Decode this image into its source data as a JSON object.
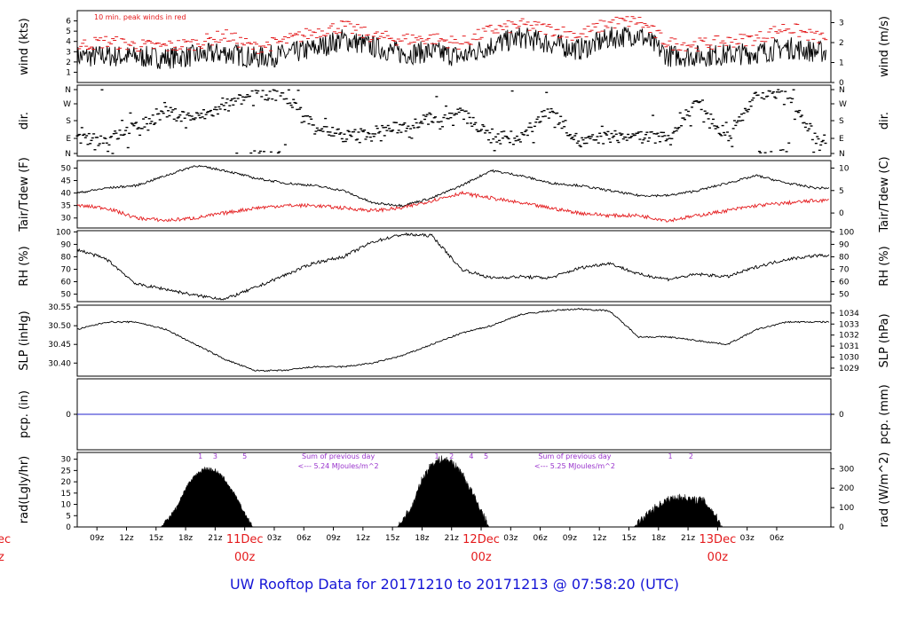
{
  "page": {
    "title": "UW Rooftop Data for 20171210  to  20171213 @ 07:58:20  (UTC)"
  },
  "colors": {
    "title": "#1515d6",
    "peak": "#e41a1c",
    "dew": "#e41a1c",
    "precip": "#2222cc",
    "solar_ann": "#9933cc",
    "day_label": "#e41a1c",
    "line": "#000000"
  },
  "time_axis": {
    "tick_labels": [
      "09z",
      "12z",
      "15z",
      "18z",
      "21z",
      "03z",
      "06z",
      "09z",
      "12z",
      "15z",
      "18z",
      "21z",
      "03z",
      "06z",
      "09z",
      "12z",
      "15z",
      "18z",
      "21z",
      "03z",
      "06z"
    ],
    "day_labels": [
      {
        "date": "11Dec",
        "hour": "00z"
      },
      {
        "date": "12Dec",
        "hour": "00z"
      },
      {
        "date": "13Dec",
        "hour": "00z"
      }
    ],
    "edge_left_date": "ec",
    "edge_left_hour": "z"
  },
  "chart_data": [
    {
      "type": "line",
      "panel": "wind",
      "ylabel_left": "wind (kts)",
      "ylabel_right": "wind (m/s)",
      "yticks_left": [
        "1",
        "2",
        "3",
        "4",
        "5",
        "6"
      ],
      "yticks_right": [
        "0",
        "1",
        "2",
        "3"
      ],
      "ylim_left": [
        0,
        7
      ],
      "annotation": "10 min. peak winds in red",
      "series": [
        {
          "name": "wind",
          "x": [
            7,
            10,
            13,
            16,
            19,
            22,
            25,
            28,
            31,
            34,
            37,
            40,
            43,
            46,
            49,
            52,
            55,
            58,
            61,
            64,
            67,
            70,
            73,
            76,
            79,
            82
          ],
          "y": [
            2.5,
            2.6,
            2.5,
            2.4,
            2.6,
            2.9,
            2.4,
            2.7,
            3.3,
            4.2,
            3.5,
            2.8,
            3.0,
            2.5,
            3.6,
            4.4,
            3.8,
            3.2,
            4.3,
            4.7,
            2.6,
            2.6,
            2.7,
            2.9,
            3.4,
            3.0
          ]
        },
        {
          "name": "peak",
          "x": [
            7,
            10,
            13,
            16,
            19,
            22,
            25,
            28,
            31,
            34,
            37,
            40,
            43,
            46,
            49,
            52,
            55,
            58,
            61,
            64,
            67,
            70,
            73,
            76,
            79,
            82
          ],
          "y": [
            3.6,
            4.0,
            3.6,
            3.5,
            3.8,
            4.6,
            3.4,
            4.0,
            4.9,
            5.5,
            4.5,
            4.2,
            4.3,
            3.8,
            5.1,
            5.6,
            5.2,
            4.6,
            5.8,
            6.0,
            3.8,
            3.7,
            4.0,
            4.3,
            5.4,
            4.4
          ]
        }
      ]
    },
    {
      "type": "scatter",
      "panel": "dir",
      "ylabel_left": "dir.",
      "ylabel_right": "dir.",
      "yticks_left": [
        "N",
        "E",
        "S",
        "W",
        "N"
      ],
      "yticks_right": [
        "N",
        "E",
        "S",
        "W",
        "N"
      ],
      "ylim_left": [
        0,
        360
      ],
      "series": [
        {
          "name": "direction",
          "x": [
            7,
            10,
            13,
            16,
            19,
            22,
            25,
            28,
            31,
            34,
            37,
            40,
            43,
            46,
            49,
            52,
            55,
            58,
            61,
            64,
            67,
            70,
            73,
            76,
            79,
            82
          ],
          "y": [
            80,
            75,
            150,
            230,
            200,
            260,
            340,
            330,
            160,
            95,
            120,
            150,
            200,
            230,
            90,
            85,
            250,
            60,
            95,
            95,
            90,
            300,
            85,
            340,
            350,
            80
          ]
        }
      ]
    },
    {
      "type": "line",
      "panel": "temperature",
      "ylabel_left": "Tair/Tdew (F)",
      "ylabel_right": "Tair/Tdew (C)",
      "yticks_left": [
        "30",
        "35",
        "40",
        "45",
        "50"
      ],
      "yticks_right": [
        "0",
        "5",
        "10"
      ],
      "ylim_left": [
        26,
        53
      ],
      "series": [
        {
          "name": "Tair",
          "x": [
            7,
            10,
            13,
            16,
            19,
            22,
            25,
            28,
            31,
            34,
            37,
            40,
            43,
            46,
            49,
            52,
            55,
            58,
            61,
            64,
            67,
            70,
            73,
            76,
            79,
            82
          ],
          "y": [
            40,
            42,
            43,
            47,
            51,
            49,
            46,
            44,
            43,
            41,
            36,
            35,
            38,
            43,
            49,
            47,
            44,
            43,
            41,
            39,
            39,
            41,
            44,
            47,
            44,
            42
          ]
        },
        {
          "name": "Tdew",
          "x": [
            7,
            10,
            13,
            16,
            19,
            22,
            25,
            28,
            31,
            34,
            37,
            40,
            43,
            46,
            49,
            52,
            55,
            58,
            61,
            64,
            67,
            70,
            73,
            76,
            79,
            82
          ],
          "y": [
            35,
            34,
            30,
            29,
            30,
            32,
            34,
            35,
            35,
            34,
            33,
            34,
            37,
            40,
            38,
            36,
            34,
            32,
            31,
            31,
            29,
            31,
            33,
            35,
            36,
            37
          ]
        }
      ]
    },
    {
      "type": "line",
      "panel": "rh",
      "ylabel_left": "RH (%)",
      "ylabel_right": "RH (%)",
      "yticks_left": [
        "50",
        "60",
        "70",
        "80",
        "90",
        "100"
      ],
      "yticks_right": [
        "50",
        "60",
        "70",
        "80",
        "90",
        "100"
      ],
      "ylim_left": [
        44,
        101
      ],
      "series": [
        {
          "name": "RH",
          "x": [
            7,
            10,
            13,
            16,
            19,
            22,
            25,
            28,
            31,
            34,
            37,
            40,
            43,
            46,
            49,
            52,
            55,
            58,
            61,
            64,
            67,
            70,
            73,
            76,
            79,
            82
          ],
          "y": [
            86,
            78,
            58,
            54,
            49,
            46,
            55,
            65,
            75,
            80,
            92,
            98,
            97,
            70,
            63,
            64,
            63,
            71,
            75,
            66,
            62,
            66,
            64,
            72,
            78,
            81
          ]
        }
      ]
    },
    {
      "type": "line",
      "panel": "pressure",
      "ylabel_left": "SLP (inHg)",
      "ylabel_right": "SLP (hPa)",
      "yticks_left": [
        "30.40",
        "30.45",
        "30.50",
        "30.55"
      ],
      "yticks_right": [
        "1029",
        "1030",
        "1031",
        "1032",
        "1033",
        "1034"
      ],
      "ylim_left": [
        30.365,
        30.555
      ],
      "series": [
        {
          "name": "SLP",
          "x": [
            7,
            10,
            13,
            16,
            19,
            22,
            25,
            28,
            31,
            34,
            37,
            40,
            43,
            46,
            49,
            52,
            55,
            58,
            61,
            64,
            67,
            70,
            73,
            76,
            79,
            82
          ],
          "y": [
            30.49,
            30.51,
            30.51,
            30.49,
            30.45,
            30.41,
            30.38,
            30.38,
            30.39,
            30.39,
            30.4,
            30.42,
            30.45,
            30.48,
            30.5,
            30.53,
            30.54,
            30.545,
            30.54,
            30.47,
            30.47,
            30.46,
            30.45,
            30.49,
            30.51,
            30.51
          ]
        }
      ]
    },
    {
      "type": "line",
      "panel": "precip",
      "ylabel_left": "pcp. (in)",
      "ylabel_right": "pcp. (mm)",
      "yticks_left": [
        "0"
      ],
      "yticks_right": [
        "0"
      ],
      "series": [
        {
          "name": "precip",
          "x": [
            7,
            82
          ],
          "y": [
            0,
            0
          ]
        }
      ]
    },
    {
      "type": "area",
      "panel": "radiation",
      "ylabel_left": "rad(Lgly/hr)",
      "ylabel_right": "rad (W/m^2)",
      "yticks_left": [
        "0",
        "5",
        "10",
        "15",
        "20",
        "25",
        "30"
      ],
      "yticks_right": [
        "0",
        "100",
        "200",
        "300"
      ],
      "ylim_left": [
        0,
        33
      ],
      "annotations": [
        {
          "text": "1",
          "x": 19.5
        },
        {
          "text": "3",
          "x": 21.0
        },
        {
          "text": "5",
          "x": 24.0
        },
        {
          "text": "1",
          "x": 43.5
        },
        {
          "text": "2",
          "x": 45.0
        },
        {
          "text": "4",
          "x": 47.0
        },
        {
          "text": "5",
          "x": 48.5
        },
        {
          "text": "1",
          "x": 67.2
        },
        {
          "text": "2",
          "x": 69.3
        }
      ],
      "sum_labels": [
        {
          "line1": "Sum of previous day",
          "line2": "<--- 5.24 MJoules/m^2",
          "x": 33.5
        },
        {
          "line1": "Sum of previous day",
          "line2": "<--- 5.25 MJoules/m^2",
          "x": 57.5
        }
      ],
      "series": [
        {
          "name": "day1",
          "x": [
            15.5,
            17,
            18,
            19,
            20,
            21,
            22,
            23,
            24,
            24.8
          ],
          "y": [
            0,
            8,
            17,
            23,
            26,
            25,
            21,
            14,
            6,
            0
          ]
        },
        {
          "name": "day2",
          "x": [
            39.5,
            41,
            42,
            43,
            44,
            45,
            46,
            47,
            48,
            48.8
          ],
          "y": [
            0,
            9,
            21,
            28,
            30,
            29,
            24,
            16,
            7,
            0
          ]
        },
        {
          "name": "day3",
          "x": [
            63.5,
            64.5,
            65.5,
            66.5,
            67.5,
            68.5,
            69.5,
            70.5,
            71.5,
            72.5
          ],
          "y": [
            0,
            4,
            8,
            11,
            13,
            13,
            12,
            12,
            7,
            0
          ]
        }
      ]
    }
  ]
}
